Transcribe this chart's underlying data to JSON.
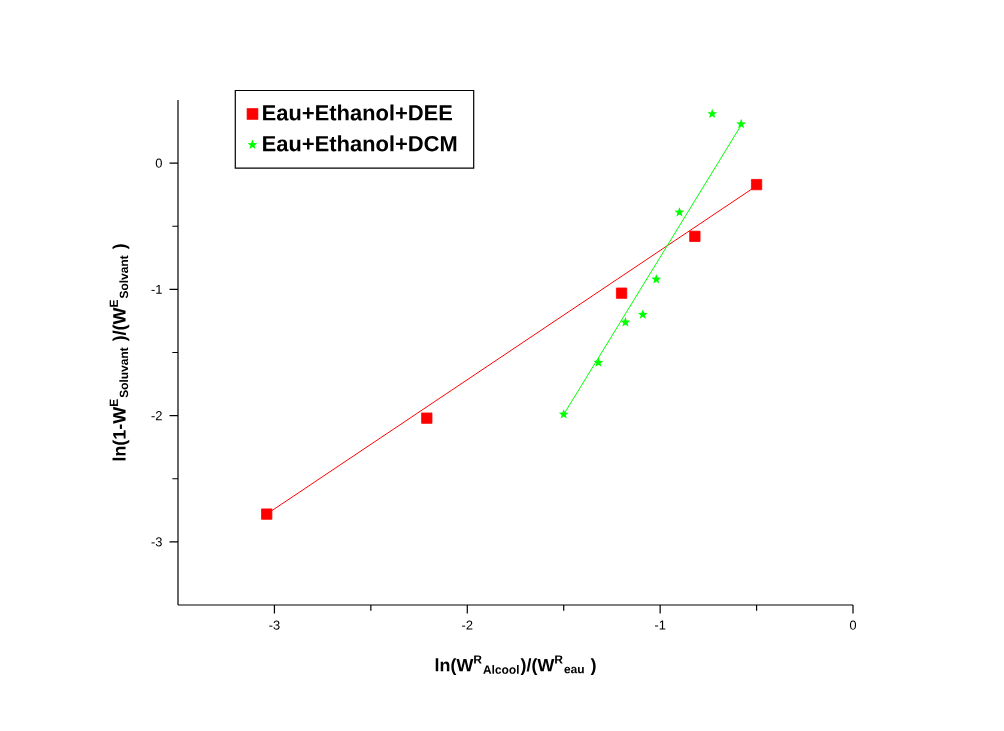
{
  "chart_data": {
    "type": "scatter",
    "xlabel": "ln(W$^{R}$$_{Alcool}$)/(W$^{R}$$_{eau}$ )",
    "ylabel": "ln(1-W$^{E}$$_{Soluvant}$ )/(W$^{E}$$_{Solvant}$ )",
    "xlim": [
      -3.5,
      0
    ],
    "ylim": [
      -3.5,
      0.5
    ],
    "xticks": [
      -3,
      -2,
      -1,
      0
    ],
    "yticks": [
      -3,
      -2,
      -1,
      0
    ],
    "grid": false,
    "legend": "top left",
    "series": [
      {
        "name": "Eau+Ethanol+DEE",
        "type": "scatter",
        "marker": "square",
        "color": "#ff0000",
        "x": [
          -3.04,
          -2.21,
          -1.2,
          -0.82,
          -0.5
        ],
        "values": [
          -2.78,
          -2.02,
          -1.03,
          -0.58,
          -0.17
        ]
      },
      {
        "name": "Eau+Ethanol+DCM",
        "type": "scatter",
        "marker": "star",
        "color": "#00ff00",
        "x": [
          -1.5,
          -1.32,
          -1.18,
          -1.09,
          -1.02,
          -0.9,
          -0.73,
          -0.58
        ],
        "values": [
          -1.99,
          -1.58,
          -1.26,
          -1.2,
          -0.92,
          -0.39,
          0.39,
          0.31
        ]
      },
      {
        "type": "line",
        "marker": "none",
        "line_style": "solid",
        "color": "#ff0000",
        "x": [
          -3.04,
          -0.5
        ],
        "values": [
          -2.78,
          -0.18
        ]
      },
      {
        "type": "line",
        "marker": "none",
        "line_style": "solid",
        "color": "#00ff00",
        "x": [
          -1.5,
          -0.58
        ],
        "values": [
          -1.99,
          0.3
        ]
      }
    ]
  }
}
